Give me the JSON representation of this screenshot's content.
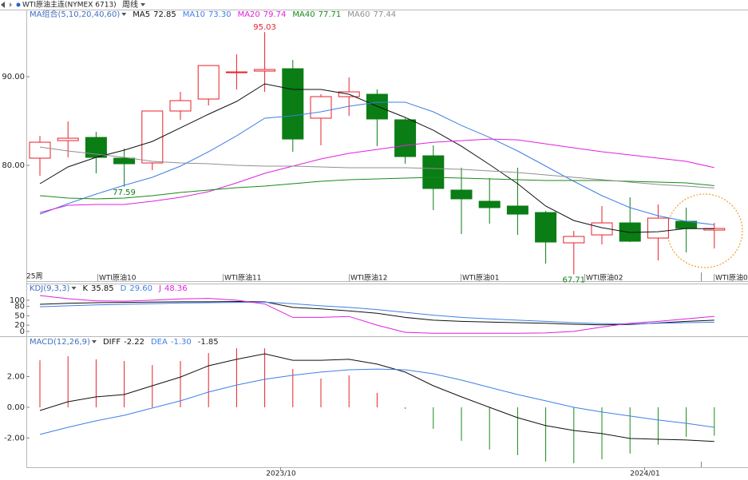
{
  "header": {
    "symbol": "WTI原油主连(NYMEX 6713)",
    "period": "周线"
  },
  "time_axis": {
    "labels": [
      "2023/10",
      "2024/01"
    ]
  },
  "chart_data": [
    {
      "type": "candlestick",
      "legend_title": "MA组合(5,10,20,40,60)",
      "open": [
        80.81,
        82.79,
        83.15,
        80.81,
        80.27,
        86.13,
        87.48,
        90.45,
        90.63,
        90.9,
        85.32,
        87.75,
        88.02,
        85.14,
        81.08,
        77.21,
        75.95,
        75.41,
        74.68,
        71.26,
        72.16,
        73.51,
        71.8,
        73.69,
        72.7
      ],
      "high": [
        83.33,
        84.95,
        83.78,
        81.89,
        86.13,
        88.29,
        91.26,
        92.52,
        95.03,
        91.89,
        88.02,
        89.91,
        88.56,
        85.32,
        82.25,
        79.73,
        78.56,
        79.73,
        74.86,
        72.61,
        75.41,
        76.4,
        75.59,
        75.23,
        73.51
      ],
      "low": [
        78.83,
        80.9,
        79.1,
        77.59,
        79.46,
        85.14,
        86.76,
        88.56,
        88.29,
        81.53,
        82.25,
        85.59,
        82.16,
        80.18,
        74.95,
        72.25,
        73.42,
        72.16,
        68.92,
        67.71,
        71.08,
        71.35,
        69.28,
        70.18,
        70.63
      ],
      "close": [
        82.61,
        83.06,
        80.9,
        80.18,
        86.13,
        87.3,
        91.26,
        90.54,
        90.81,
        82.97,
        87.75,
        88.29,
        85.23,
        80.99,
        77.39,
        76.22,
        75.23,
        74.5,
        71.35,
        71.98,
        73.51,
        71.44,
        74.05,
        72.88,
        72.88
      ],
      "high_labels": [
        null,
        null,
        null,
        null,
        null,
        null,
        null,
        null,
        "95.03",
        null,
        null,
        null,
        null,
        null,
        null,
        null,
        null,
        null,
        null,
        null,
        null,
        null,
        null,
        null,
        null
      ],
      "low_labels": [
        null,
        null,
        null,
        "77.59",
        null,
        null,
        null,
        null,
        null,
        null,
        null,
        null,
        null,
        null,
        null,
        null,
        null,
        null,
        null,
        "67.71",
        null,
        null,
        null,
        null,
        null
      ],
      "up_color": "#e8202a",
      "down_color": "#0a7d14",
      "series": [
        {
          "name": "MA5",
          "color": "#111111",
          "last_label": "72.85",
          "values": [
            77.93,
            79.82,
            80.9,
            81.71,
            82.7,
            84.23,
            85.77,
            87.21,
            89.19,
            88.56,
            88.56,
            88.02,
            86.67,
            85.41,
            83.96,
            82.16,
            80.09,
            77.93,
            75.41,
            73.78,
            72.97,
            72.43,
            72.52,
            72.88,
            72.85
          ]
        },
        {
          "name": "MA10",
          "color": "#3f7fe6",
          "last_label": "73.30",
          "values": [
            74.5,
            75.68,
            76.76,
            77.75,
            78.65,
            79.91,
            81.53,
            83.33,
            85.32,
            85.59,
            86.04,
            86.67,
            87.12,
            87.12,
            86.04,
            84.5,
            83.15,
            81.62,
            79.91,
            78.2,
            76.58,
            75.23,
            74.32,
            73.69,
            73.3
          ]
        },
        {
          "name": "MA20",
          "color": "#e020e0",
          "last_label": "79.74",
          "values": [
            74.68,
            75.5,
            75.59,
            75.59,
            75.95,
            76.4,
            77.03,
            78.02,
            79.1,
            79.91,
            80.72,
            81.35,
            81.8,
            82.25,
            82.61,
            82.79,
            82.97,
            82.88,
            82.43,
            81.98,
            81.53,
            81.17,
            80.81,
            80.45,
            79.74
          ]
        },
        {
          "name": "MA40",
          "color": "#1a8a1a",
          "last_label": "77.71",
          "values": [
            76.58,
            76.31,
            76.22,
            76.31,
            76.58,
            76.94,
            77.21,
            77.48,
            77.66,
            77.93,
            78.2,
            78.38,
            78.47,
            78.56,
            78.65,
            78.56,
            78.47,
            78.38,
            78.29,
            78.29,
            78.29,
            78.2,
            78.11,
            78.02,
            77.71
          ]
        },
        {
          "name": "MA60",
          "color": "#909090",
          "last_label": "77.44",
          "values": [
            82.07,
            81.62,
            81.26,
            80.9,
            80.45,
            80.27,
            80.18,
            80.0,
            79.91,
            79.91,
            79.82,
            79.73,
            79.73,
            79.73,
            79.64,
            79.55,
            79.37,
            79.19,
            78.92,
            78.65,
            78.38,
            78.11,
            77.84,
            77.66,
            77.44
          ]
        }
      ],
      "ylim": [
        66.94,
        97.57
      ],
      "yticks": [
        {
          "value": 90,
          "label": "90.00"
        },
        {
          "value": 80,
          "label": "80.00"
        }
      ],
      "period_label": "25周",
      "period_marks": [
        "WTI原油10",
        "WTI原油11",
        "WTI原油12",
        "WTI原油01",
        "WTI原油02",
        "WTI原油0"
      ]
    },
    {
      "type": "line",
      "legend_title": "KDJ(9,3,3)",
      "series": [
        {
          "name": "K",
          "color": "#111111",
          "last_label": "35.85",
          "values": [
            87,
            90,
            92,
            93,
            94,
            95,
            95,
            96,
            95,
            77,
            72,
            66,
            58,
            45,
            36,
            32,
            30,
            28,
            26,
            23,
            21,
            22,
            27,
            32,
            35.85
          ]
        },
        {
          "name": "D",
          "color": "#3f7fe6",
          "last_label": "29.60",
          "values": [
            79,
            82,
            85,
            87,
            89,
            91,
            92,
            93,
            94,
            89,
            82,
            77,
            70,
            61,
            52,
            45,
            40,
            36,
            32,
            28,
            25,
            24,
            26,
            28,
            29.6
          ]
        },
        {
          "name": "J",
          "color": "#e020e0",
          "last_label": "48.36",
          "values": [
            115,
            105,
            98,
            97,
            100,
            104,
            106,
            100,
            88,
            45,
            45,
            48,
            20,
            -3,
            -6,
            -6,
            -6,
            -6,
            -5,
            0,
            14,
            26,
            32,
            40,
            48.36
          ]
        }
      ],
      "ylim": [
        -13,
        151
      ],
      "yticks": [
        100,
        80,
        50,
        20,
        0
      ]
    },
    {
      "type": "macd",
      "legend_title": "MACD(12,26,9)",
      "series": [
        {
          "name": "DIFF",
          "color": "#111111",
          "last_label": "-2.22",
          "values": [
            -0.21,
            0.36,
            0.68,
            0.83,
            1.4,
            1.97,
            2.7,
            3.12,
            3.48,
            3.06,
            3.06,
            3.12,
            2.81,
            2.29,
            1.4,
            0.68,
            0.0,
            -0.68,
            -1.19,
            -1.51,
            -1.71,
            -2.03,
            -2.08,
            -2.13,
            -2.22
          ]
        },
        {
          "name": "DEA",
          "color": "#3f7fe6",
          "last_label": "-1.30",
          "values": [
            -1.77,
            -1.3,
            -0.88,
            -0.52,
            -0.05,
            0.42,
            0.99,
            1.45,
            1.82,
            2.08,
            2.29,
            2.44,
            2.49,
            2.44,
            2.18,
            1.77,
            1.3,
            0.83,
            0.42,
            0.0,
            -0.31,
            -0.57,
            -0.83,
            -1.04,
            -1.3
          ]
        }
      ],
      "histogram": {
        "last_label": "-1.85",
        "up_color": "#e8202a",
        "down_color": "#1a8a1a",
        "values": [
          3.06,
          3.32,
          3.12,
          3.01,
          2.75,
          3.01,
          3.53,
          3.84,
          3.84,
          2.49,
          1.87,
          2.08,
          0.94,
          -0.1,
          -1.4,
          -2.18,
          -2.75,
          -3.12,
          -3.53,
          -3.64,
          -3.38,
          -3.01,
          -2.44,
          -1.92,
          -1.85
        ]
      },
      "ylim": [
        -3.9,
        4.52
      ],
      "yticks": [
        {
          "value": 2,
          "label": "2.00"
        },
        {
          "value": 0,
          "label": "0.00"
        },
        {
          "value": -2,
          "label": "-2.00"
        }
      ]
    }
  ]
}
